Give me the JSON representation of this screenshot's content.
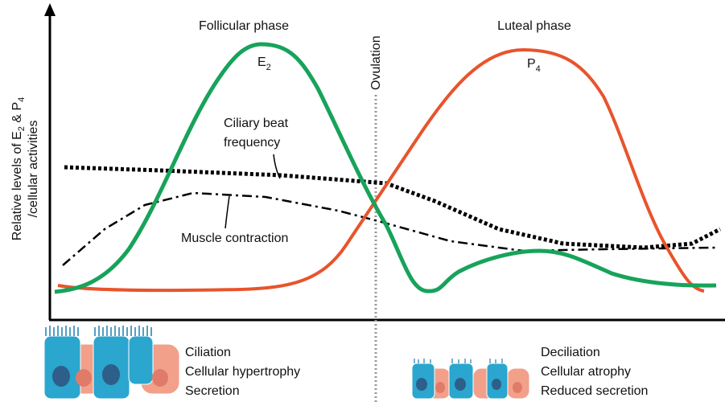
{
  "diagram": {
    "phases": {
      "follicular": "Follicular phase",
      "luteal": "Luteal phase",
      "ovulation": "Ovulation"
    },
    "curves": {
      "e2": {
        "base": "E",
        "sub": "2"
      },
      "p4": {
        "base": "P",
        "sub": "4"
      },
      "ciliary": [
        "Ciliary beat",
        "frequency"
      ],
      "muscle": "Muscle contraction"
    },
    "y_axis_label": {
      "line1": [
        "Relative levels of E",
        "2",
        " & P",
        "4"
      ],
      "line2": "/cellular activities"
    },
    "left_cells": [
      "Ciliation",
      "Cellular hypertrophy",
      "Secretion"
    ],
    "right_cells": [
      "Deciliation",
      "Cellular atrophy",
      "Reduced secretion"
    ]
  }
}
